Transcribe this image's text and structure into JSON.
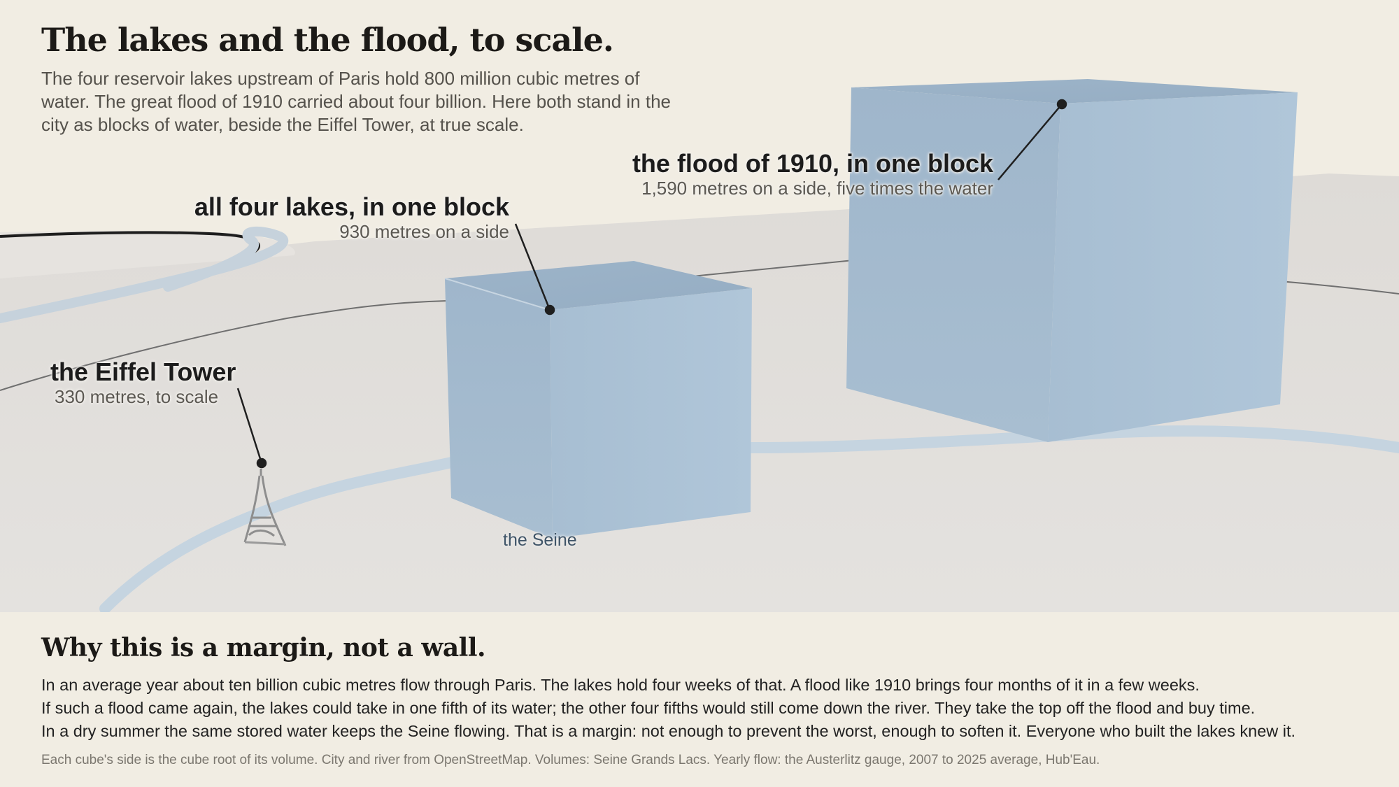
{
  "header": {
    "title": "The lakes and the flood, to scale.",
    "intro": "The four reservoir lakes upstream of Paris hold 800 million cubic metres of water. The great flood of 1910 carried about four billion. Here both stand in the city as blocks of water, beside the Eiffel Tower, at true scale."
  },
  "labels": {
    "flood": {
      "title": "the flood of 1910, in one block",
      "sub": "1,590 metres on a side, five times the water"
    },
    "lakes": {
      "title": "all four lakes, in one block",
      "sub": "930 metres on a side"
    },
    "eiffel": {
      "title": "the Eiffel Tower",
      "sub": "330 metres, to scale"
    },
    "river": "the Seine"
  },
  "colors": {
    "background": "#f1ede3",
    "ground": "#e2e0dc",
    "water": "#a9bfd2",
    "river": "#c3d2de"
  },
  "footer": {
    "heading": "Why this is a margin, not a wall.",
    "lines": [
      "In an average year about ten billion cubic metres flow through Paris. The lakes hold four weeks of that. A flood like 1910 brings four months of it in a few weeks.",
      "If such a flood came again, the lakes could take in one fifth of its water; the other four fifths would still come down the river. They take the top off the flood and buy time.",
      "In a dry summer the same stored water keeps the Seine flowing. That is a margin: not enough to prevent the worst, enough to soften it. Everyone who built the lakes knew it."
    ],
    "source_note": "Each cube's side is the cube root of its volume. City and river from OpenStreetMap. Volumes: Seine Grands Lacs. Yearly flow: the Austerlitz gauge, 2007 to 2025 average, Hub'Eau."
  }
}
